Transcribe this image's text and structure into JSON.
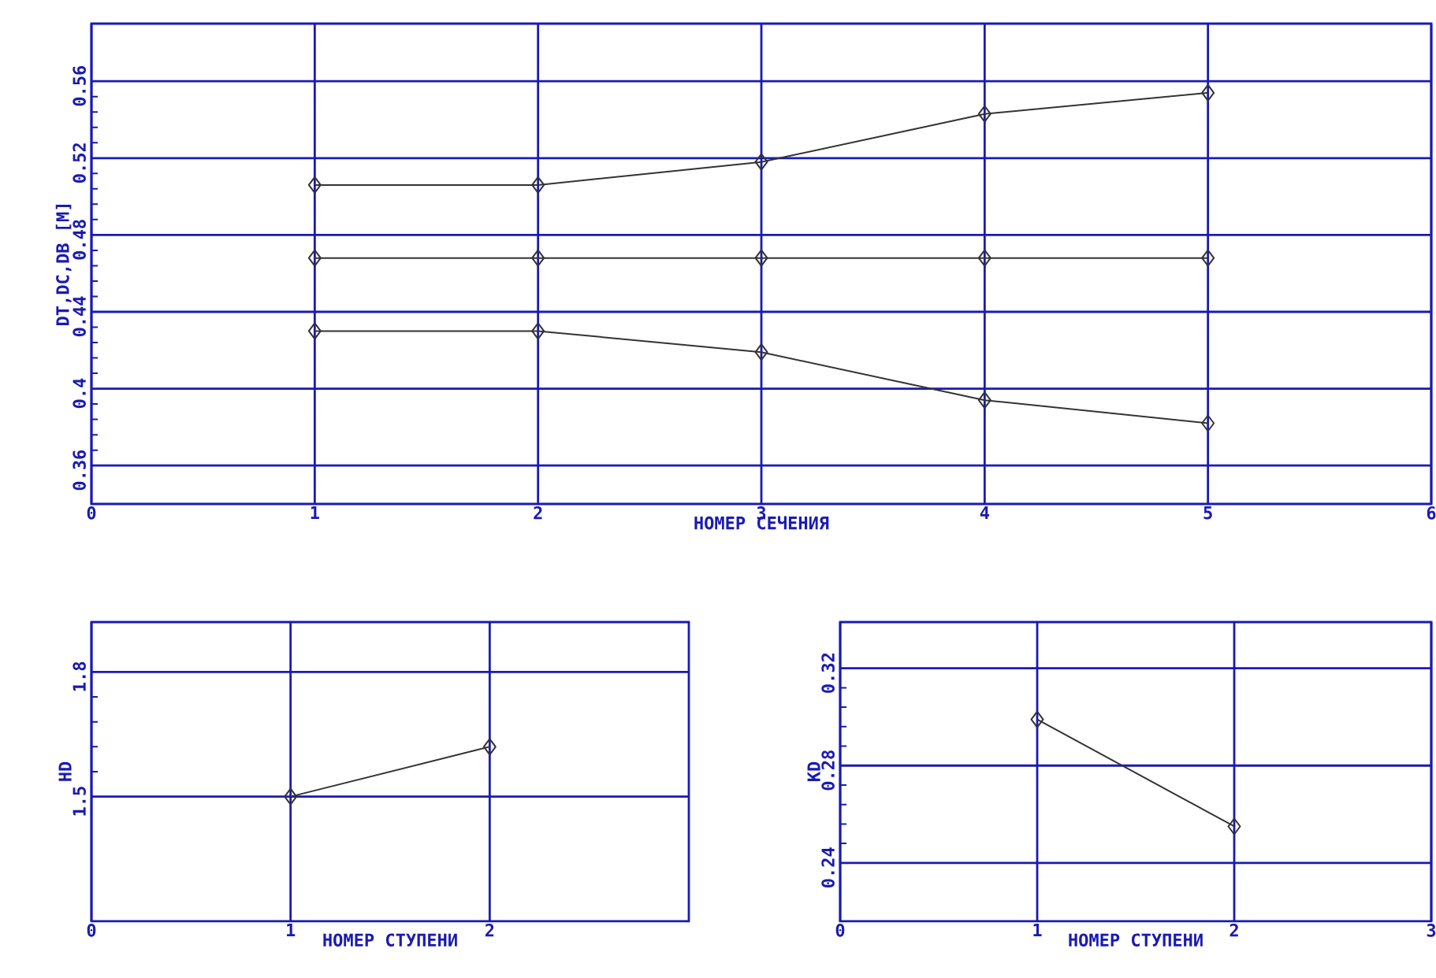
{
  "chart_data": [
    {
      "type": "line",
      "xlabel": "НОМЕР СЕЧЕНИЯ",
      "ylabel": "DT,DC,DB [M]",
      "x": [
        1,
        2,
        3,
        4,
        5
      ],
      "series": [
        {
          "color": "#333333",
          "values": [
            0.506,
            0.506,
            0.518,
            0.543,
            0.554
          ]
        },
        {
          "color": "#333333",
          "values": [
            0.468,
            0.468,
            0.468,
            0.468,
            0.468
          ]
        },
        {
          "color": "#333333",
          "values": [
            0.43,
            0.43,
            0.419,
            0.394,
            0.382
          ]
        }
      ],
      "xlim": [
        0,
        6
      ],
      "xticks": [
        0,
        1,
        2,
        3,
        4,
        5,
        6
      ],
      "ylim": [
        0.34,
        0.59
      ],
      "yticks": [
        0.36,
        0.4,
        0.44,
        0.48,
        0.52,
        0.56
      ],
      "grid": true,
      "marker": "diamond",
      "line_style": "solid"
    },
    {
      "type": "line",
      "xlabel": "НОМЕР СТУПЕНИ",
      "ylabel": "HD",
      "x": [
        1,
        2
      ],
      "series": [
        {
          "color": "#333333",
          "values": [
            1.5,
            1.62
          ]
        }
      ],
      "xlim": [
        0,
        3
      ],
      "xticks": [
        0,
        1,
        2
      ],
      "ylim": [
        1.2,
        1.92
      ],
      "yticks": [
        1.5,
        1.8
      ],
      "grid": true,
      "marker": "diamond",
      "line_style": "solid"
    },
    {
      "type": "line",
      "xlabel": "НОМЕР СТУПЕНИ",
      "ylabel": "KD",
      "x": [
        1,
        2
      ],
      "series": [
        {
          "color": "#333333",
          "values": [
            0.299,
            0.255
          ]
        }
      ],
      "xlim": [
        0,
        3
      ],
      "xticks": [
        0,
        1,
        2,
        3
      ],
      "ylim": [
        0.216,
        0.339
      ],
      "yticks": [
        0.24,
        0.28,
        0.32
      ],
      "grid": true,
      "marker": "diamond",
      "line_style": "solid"
    }
  ]
}
